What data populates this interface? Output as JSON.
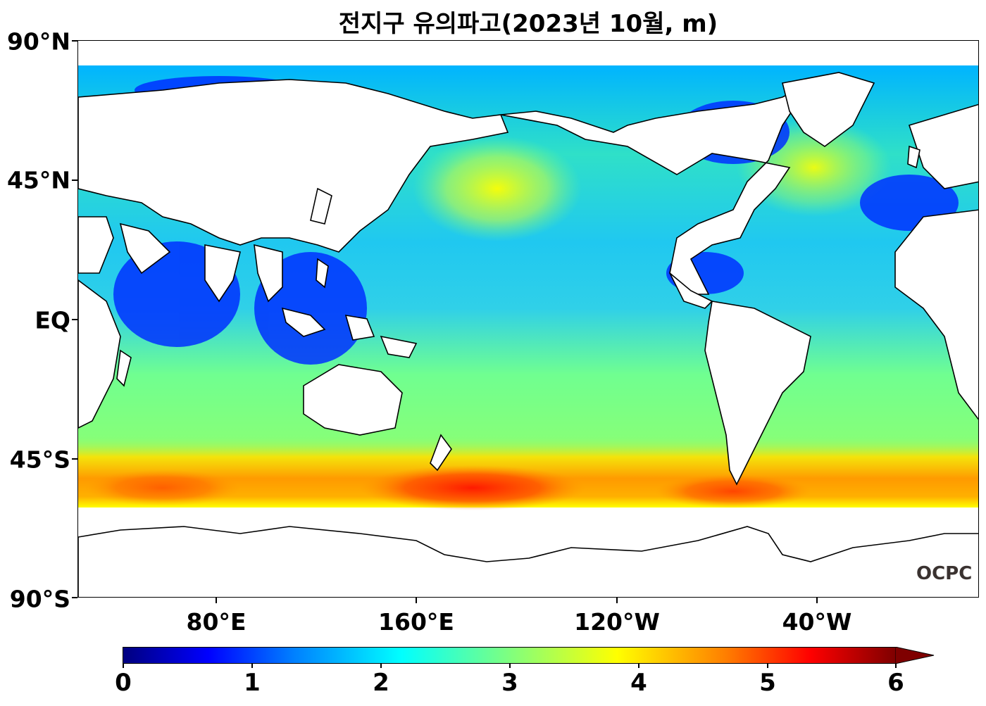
{
  "title": "전지구 유의파고(2023년 10월, m)",
  "y_axis": {
    "ticks": [
      "90°N",
      "45°N",
      "EQ",
      "45°S",
      "90°S"
    ]
  },
  "x_axis": {
    "ticks": [
      "80°E",
      "160°E",
      "120°W",
      "40°W"
    ]
  },
  "colorbar": {
    "ticks": [
      "0",
      "1",
      "2",
      "3",
      "4",
      "5",
      "6"
    ],
    "colormap": "jet",
    "min": 0,
    "max": 6,
    "extend": "max"
  },
  "logo": "OCPC",
  "colors": {
    "land": "#ffffff",
    "coastline": "#000000",
    "text": "#000000"
  }
}
